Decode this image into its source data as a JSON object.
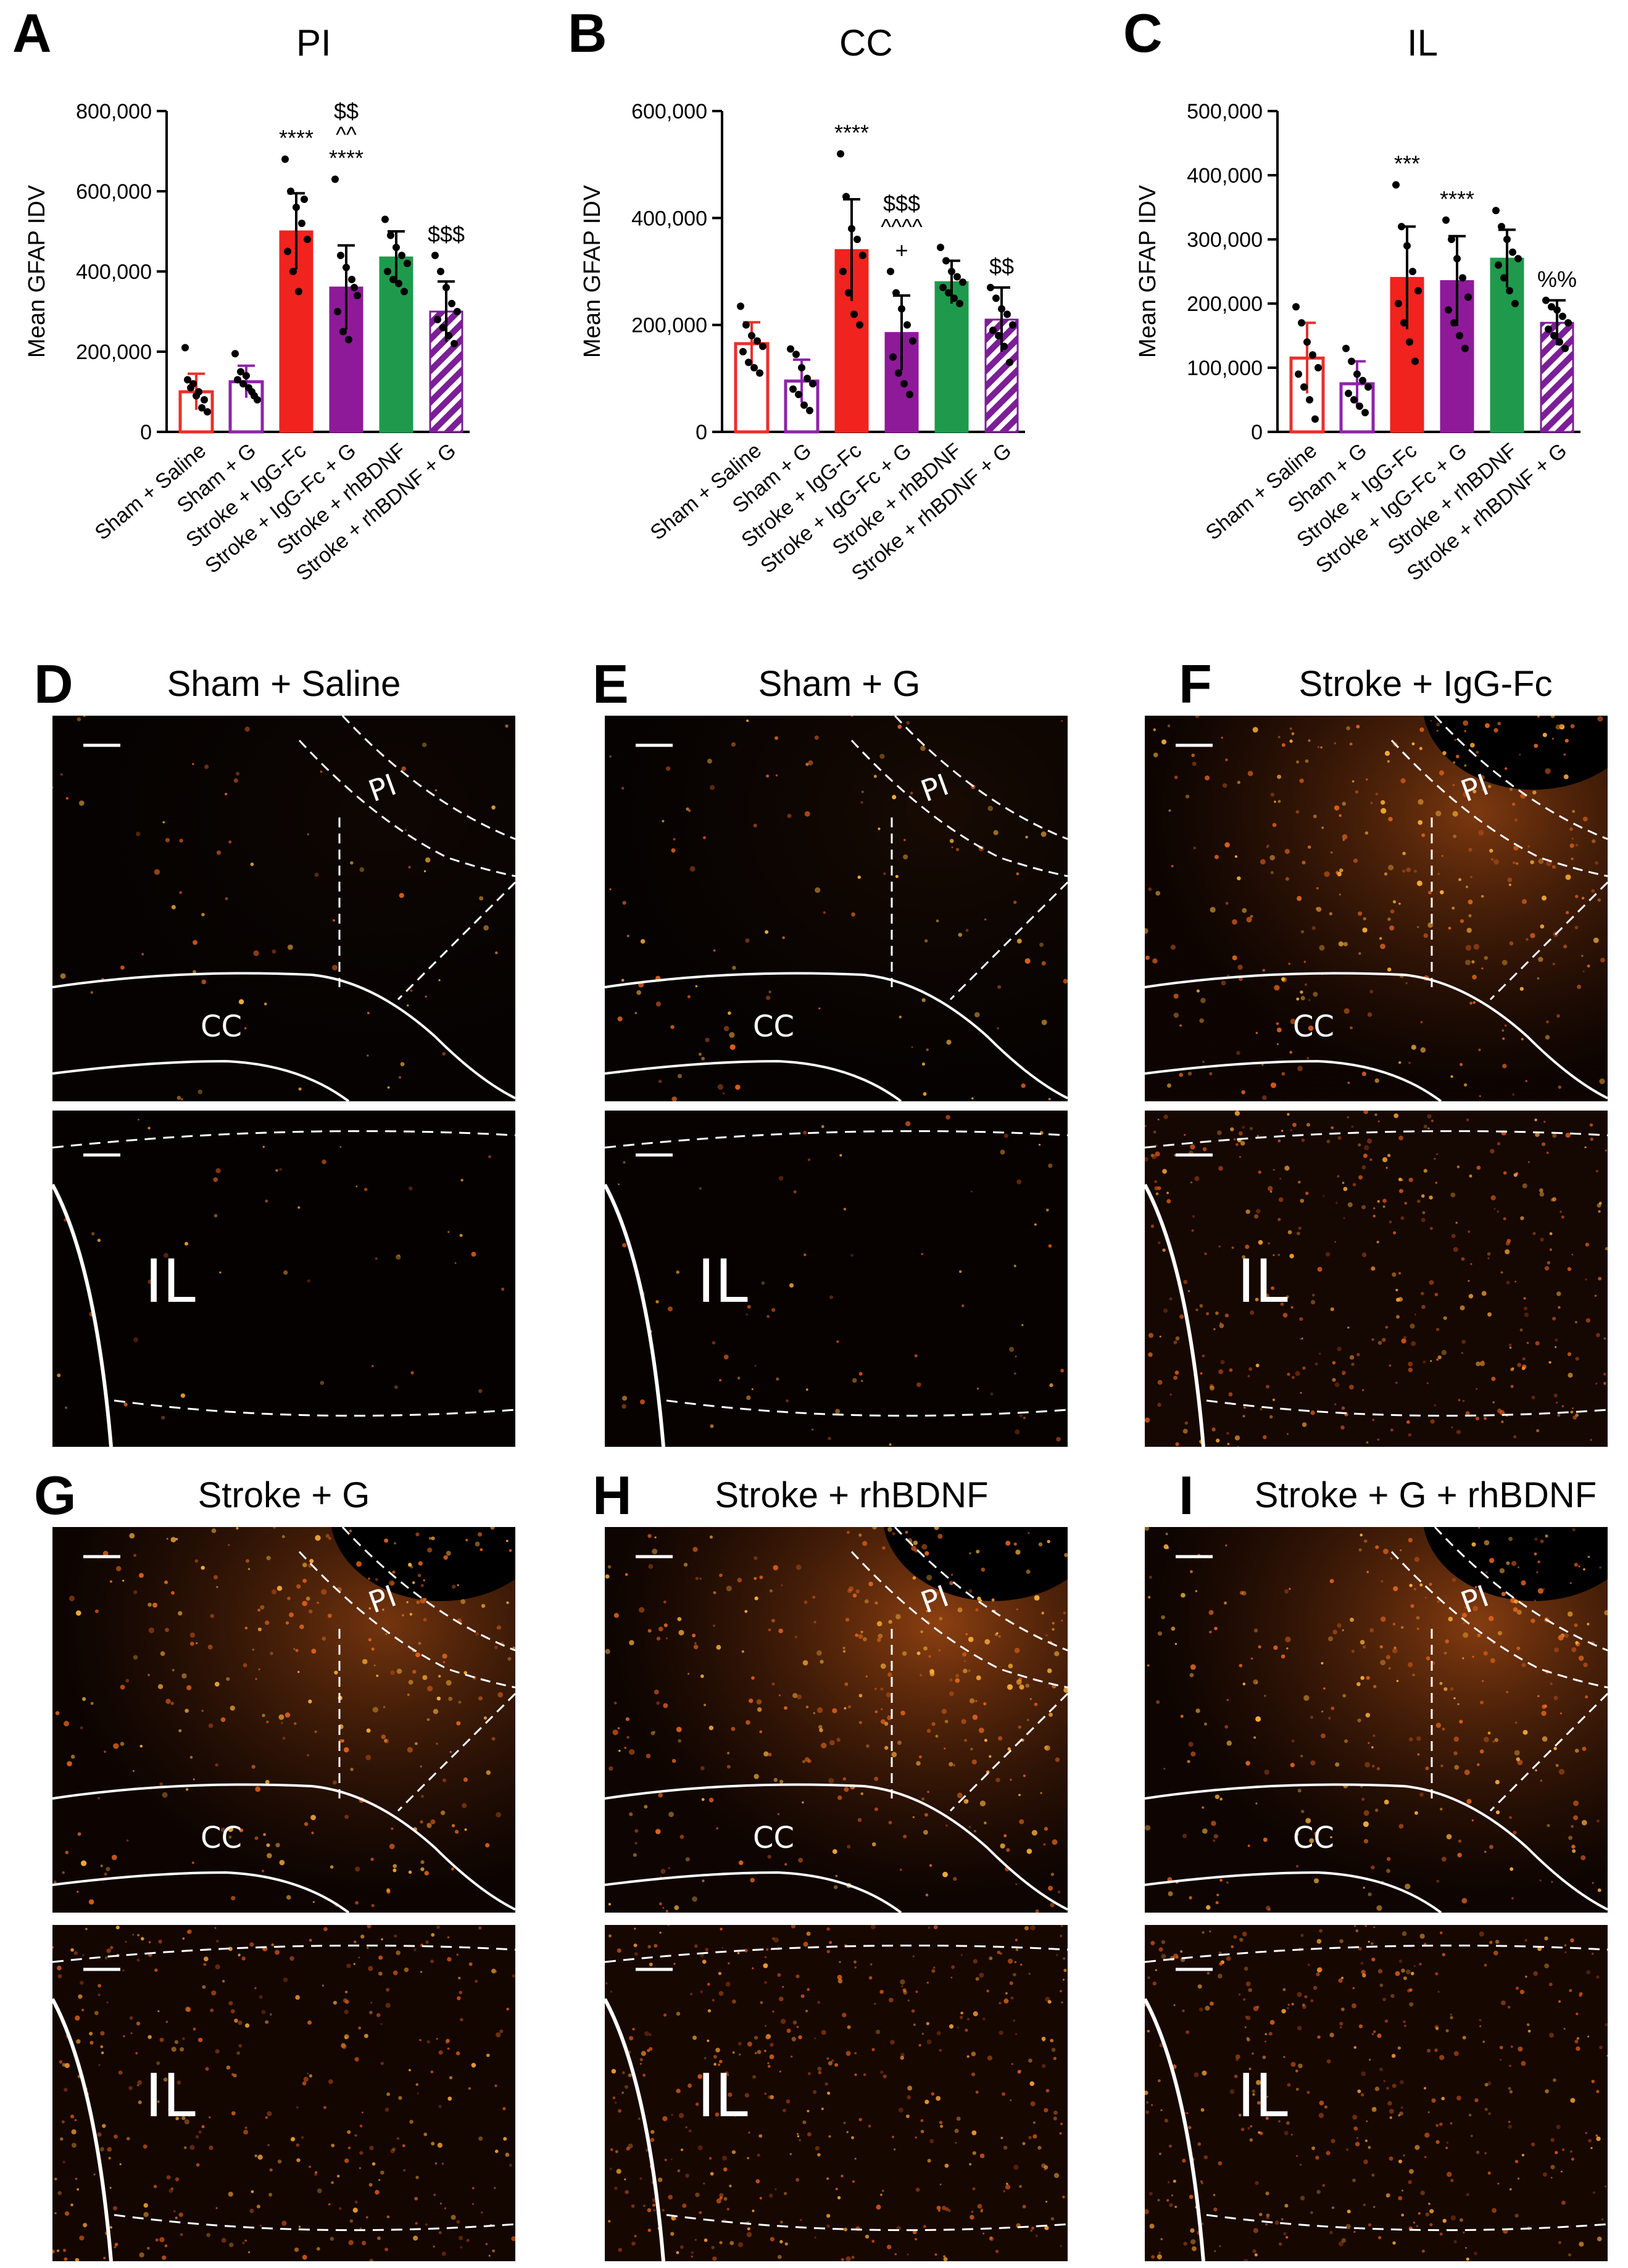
{
  "panels": [
    {
      "letter": "A",
      "title": "PI"
    },
    {
      "letter": "B",
      "title": "CC"
    },
    {
      "letter": "C",
      "title": "IL"
    }
  ],
  "chart_data": [
    {
      "type": "bar",
      "title": "PI",
      "ylabel": "Mean GFAP IDV",
      "xlabel": "",
      "ylim": [
        0,
        800000
      ],
      "yticks": [
        "0",
        "200,000",
        "400,000",
        "600,000",
        "800,000"
      ],
      "categories": [
        "Sham + Saline",
        "Sham + G",
        "Stroke + IgG-Fc",
        "Stroke + IgG-Fc + G",
        "Stroke + rhBDNF",
        "Stroke + rhBDNF + G"
      ],
      "values": [
        100000,
        125000,
        500000,
        360000,
        435000,
        300000
      ],
      "errors": [
        45000,
        40000,
        95000,
        105000,
        65000,
        75000
      ],
      "points": [
        [
          210000,
          110000,
          90000,
          60000,
          50000,
          130000,
          120000,
          100000,
          80000
        ],
        [
          195000,
          150000,
          140000,
          100000,
          80000,
          130000,
          120000,
          110000,
          90000
        ],
        [
          680000,
          600000,
          560000,
          520000,
          480000,
          450000,
          400000,
          350000,
          580000
        ],
        [
          630000,
          440000,
          410000,
          380000,
          340000,
          300000,
          250000,
          230000,
          360000
        ],
        [
          530000,
          490000,
          460000,
          440000,
          420000,
          400000,
          380000,
          370000,
          350000
        ],
        [
          440000,
          400000,
          360000,
          320000,
          300000,
          280000,
          260000,
          240000,
          220000
        ]
      ],
      "colors": [
        "#e8312b",
        "#8e24aa",
        "#f0231f",
        "#8e1a9a",
        "#1f9a4c",
        "#7b1f96"
      ],
      "fills": [
        "open",
        "open",
        "solid",
        "solid",
        "solid",
        "hatch"
      ],
      "annotations": [
        {
          "bar": 2,
          "lines": [
            "****"
          ]
        },
        {
          "bar": 3,
          "lines": [
            "$$",
            "^^",
            "****"
          ]
        },
        {
          "bar": 5,
          "lines": [
            "$$$"
          ]
        }
      ]
    },
    {
      "type": "bar",
      "title": "CC",
      "ylabel": "Mean GFAP IDV",
      "xlabel": "",
      "ylim": [
        0,
        600000
      ],
      "yticks": [
        "0",
        "200,000",
        "400,000",
        "600,000"
      ],
      "categories": [
        "Sham + Saline",
        "Sham + G",
        "Stroke + IgG-Fc",
        "Stroke + IgG-Fc + G",
        "Stroke + rhBDNF",
        "Stroke + rhBDNF + G"
      ],
      "values": [
        165000,
        95000,
        340000,
        185000,
        280000,
        210000
      ],
      "errors": [
        40000,
        40000,
        95000,
        70000,
        40000,
        60000
      ],
      "points": [
        [
          235000,
          200000,
          180000,
          170000,
          160000,
          150000,
          130000,
          120000,
          110000
        ],
        [
          155000,
          145000,
          120000,
          100000,
          90000,
          80000,
          70000,
          50000,
          40000
        ],
        [
          520000,
          440000,
          380000,
          360000,
          330000,
          300000,
          260000,
          220000,
          200000
        ],
        [
          300000,
          260000,
          230000,
          200000,
          170000,
          140000,
          110000,
          90000,
          70000
        ],
        [
          345000,
          320000,
          300000,
          290000,
          280000,
          270000,
          260000,
          250000,
          240000
        ],
        [
          270000,
          250000,
          230000,
          220000,
          200000,
          190000,
          180000,
          160000,
          130000
        ]
      ],
      "colors": [
        "#e8312b",
        "#8e24aa",
        "#f0231f",
        "#8e1a9a",
        "#1f9a4c",
        "#7b1f96"
      ],
      "fills": [
        "open",
        "open",
        "solid",
        "solid",
        "solid",
        "hatch"
      ],
      "annotations": [
        {
          "bar": 2,
          "lines": [
            "****"
          ]
        },
        {
          "bar": 3,
          "lines": [
            "$$$",
            "^^^^",
            "+"
          ]
        },
        {
          "bar": 5,
          "lines": [
            "$$"
          ]
        }
      ]
    },
    {
      "type": "bar",
      "title": "IL",
      "ylabel": "Mean GFAP IDV",
      "xlabel": "",
      "ylim": [
        0,
        500000
      ],
      "yticks": [
        "0",
        "100,000",
        "200,000",
        "300,000",
        "400,000",
        "500,000"
      ],
      "categories": [
        "Sham + Saline",
        "Sham + G",
        "Stroke + IgG-Fc",
        "Stroke + IgG-Fc + G",
        "Stroke + rhBDNF",
        "Stroke + rhBDNF + G"
      ],
      "values": [
        115000,
        75000,
        240000,
        235000,
        270000,
        170000
      ],
      "errors": [
        55000,
        35000,
        80000,
        70000,
        45000,
        35000
      ],
      "points": [
        [
          195000,
          170000,
          140000,
          120000,
          100000,
          90000,
          70000,
          50000,
          20000
        ],
        [
          130000,
          110000,
          90000,
          80000,
          70000,
          60000,
          50000,
          40000,
          30000
        ],
        [
          385000,
          320000,
          290000,
          250000,
          220000,
          200000,
          170000,
          140000,
          110000
        ],
        [
          330000,
          300000,
          270000,
          240000,
          210000,
          190000,
          170000,
          150000,
          130000
        ],
        [
          345000,
          320000,
          300000,
          280000,
          270000,
          260000,
          240000,
          220000,
          200000
        ],
        [
          205000,
          195000,
          190000,
          180000,
          170000,
          160000,
          150000,
          140000,
          130000
        ]
      ],
      "colors": [
        "#e8312b",
        "#8e24aa",
        "#f0231f",
        "#8e1a9a",
        "#1f9a4c",
        "#7b1f96"
      ],
      "fills": [
        "open",
        "open",
        "solid",
        "solid",
        "solid",
        "hatch"
      ],
      "annotations": [
        {
          "bar": 2,
          "lines": [
            "***"
          ]
        },
        {
          "bar": 3,
          "lines": [
            "****"
          ]
        },
        {
          "bar": 5,
          "lines": [
            "%%"
          ]
        }
      ]
    }
  ],
  "micrographs": [
    {
      "letter": "D",
      "title": "Sham + Saline",
      "labels": [
        "PI",
        "CC",
        "IL"
      ]
    },
    {
      "letter": "E",
      "title": "Sham + G",
      "labels": [
        "PI",
        "CC",
        "IL"
      ]
    },
    {
      "letter": "F",
      "title": "Stroke + IgG-Fc",
      "labels": [
        "PI",
        "CC",
        "IL"
      ]
    },
    {
      "letter": "G",
      "title": "Stroke + G",
      "labels": [
        "PI",
        "CC",
        "IL"
      ]
    },
    {
      "letter": "H",
      "title": "Stroke + rhBDNF",
      "labels": [
        "PI",
        "CC",
        "IL"
      ]
    },
    {
      "letter": "I",
      "title": "Stroke + G + rhBDNF",
      "labels": [
        "PI",
        "CC",
        "IL"
      ]
    }
  ]
}
